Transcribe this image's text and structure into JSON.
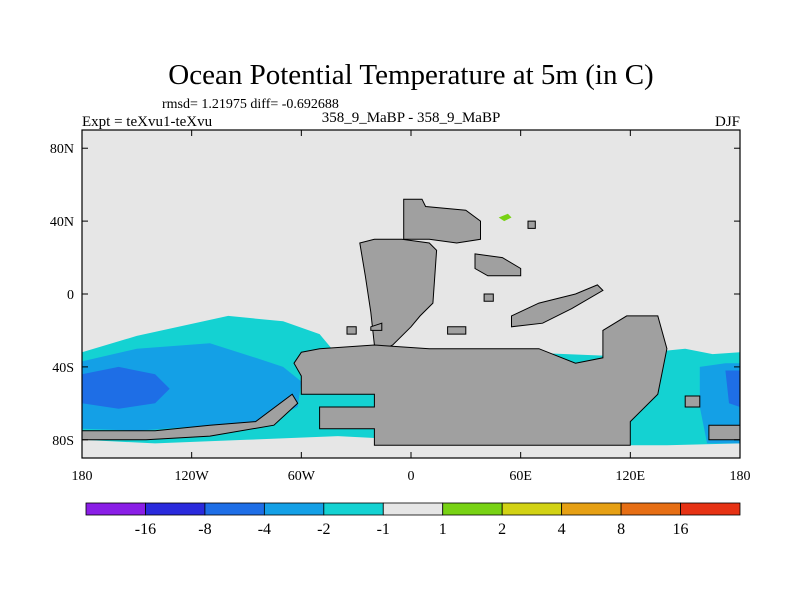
{
  "chart_data": {
    "type": "heatmap",
    "title": "Ocean Potential Temperature at 5m (in C)",
    "stats": "rmsd= 1.21975 diff= -0.692688",
    "experiment": "Expt = teXvu1-teXvu",
    "subtitle": "358_9_MaBP - 358_9_MaBP",
    "season": "DJF",
    "xlim": [
      -180,
      180
    ],
    "ylim": [
      -90,
      90
    ],
    "x_ticks": [
      {
        "value": -180,
        "label": "180"
      },
      {
        "value": -120,
        "label": "120W"
      },
      {
        "value": -60,
        "label": "60W"
      },
      {
        "value": 0,
        "label": "0"
      },
      {
        "value": 60,
        "label": "60E"
      },
      {
        "value": 120,
        "label": "120E"
      },
      {
        "value": 180,
        "label": "180"
      }
    ],
    "y_ticks": [
      {
        "value": 80,
        "label": "80N"
      },
      {
        "value": 40,
        "label": "40N"
      },
      {
        "value": 0,
        "label": "0"
      },
      {
        "value": -40,
        "label": "40S"
      },
      {
        "value": -80,
        "label": "80S"
      }
    ],
    "colorbar": {
      "colors": [
        "#8a1ee6",
        "#2a2adc",
        "#1e6ee6",
        "#14a0e6",
        "#14d2d2",
        "#e6e6e6",
        "#78d214",
        "#d2d214",
        "#e6a014",
        "#e66e14",
        "#e63214"
      ],
      "boundaries": [
        "-16",
        "-8",
        "-4",
        "-2",
        "-1",
        "1",
        "2",
        "4",
        "8",
        "16"
      ],
      "label_positions": [
        1,
        2,
        3,
        4,
        5,
        6,
        7,
        8,
        9,
        10
      ]
    },
    "background_color": "#e6e6e6",
    "land_color": "#a0a0a0",
    "anomaly_regions": [
      {
        "name": "southern-belt-light",
        "level": "-2 to -1",
        "color": "#14d2d2",
        "points": [
          [
            -180,
            -32
          ],
          [
            -150,
            -23
          ],
          [
            -100,
            -12
          ],
          [
            -70,
            -15
          ],
          [
            -50,
            -22
          ],
          [
            -40,
            -34
          ],
          [
            -20,
            -37
          ],
          [
            0,
            -37
          ],
          [
            20,
            -31
          ],
          [
            60,
            -32
          ],
          [
            110,
            -34
          ],
          [
            150,
            -30
          ],
          [
            165,
            -33
          ],
          [
            180,
            -32
          ],
          [
            180,
            -82
          ],
          [
            140,
            -83
          ],
          [
            70,
            -83
          ],
          [
            0,
            -80
          ],
          [
            -40,
            -78
          ],
          [
            -90,
            -80
          ],
          [
            -140,
            -82
          ],
          [
            -180,
            -80
          ]
        ]
      },
      {
        "name": "south-pacific-medium",
        "level": "-4 to -2",
        "color": "#14a0e6",
        "points": [
          [
            -180,
            -37
          ],
          [
            -150,
            -30
          ],
          [
            -110,
            -27
          ],
          [
            -85,
            -35
          ],
          [
            -70,
            -40
          ],
          [
            -60,
            -48
          ],
          [
            -62,
            -62
          ],
          [
            -80,
            -70
          ],
          [
            -110,
            -72
          ],
          [
            -150,
            -75
          ],
          [
            -180,
            -74
          ]
        ]
      },
      {
        "name": "south-pacific-strong",
        "level": "-8 to -4",
        "color": "#1e6ee6",
        "points": [
          [
            -180,
            -44
          ],
          [
            -160,
            -40
          ],
          [
            -140,
            -44
          ],
          [
            -132,
            -52
          ],
          [
            -140,
            -60
          ],
          [
            -160,
            -63
          ],
          [
            -180,
            -60
          ]
        ]
      },
      {
        "name": "east-medium",
        "level": "-4 to -2",
        "color": "#14a0e6",
        "points": [
          [
            158,
            -40
          ],
          [
            172,
            -38
          ],
          [
            180,
            -38
          ],
          [
            180,
            -82
          ],
          [
            162,
            -82
          ],
          [
            158,
            -62
          ]
        ]
      },
      {
        "name": "east-strong",
        "level": "-8 to -4",
        "color": "#1e6ee6",
        "points": [
          [
            172,
            -42
          ],
          [
            180,
            -42
          ],
          [
            180,
            -62
          ],
          [
            174,
            -60
          ]
        ]
      },
      {
        "name": "atlantic-medium",
        "level": "-4 to -2",
        "color": "#14a0e6",
        "points": [
          [
            -20,
            -40
          ],
          [
            -10,
            -38
          ],
          [
            0,
            -42
          ],
          [
            -8,
            -50
          ],
          [
            -20,
            -48
          ]
        ]
      },
      {
        "name": "north-green-spot",
        "level": "1 to 2",
        "color": "#78d214",
        "points": [
          [
            48,
            42
          ],
          [
            53,
            44
          ],
          [
            55,
            42
          ],
          [
            51,
            40
          ]
        ]
      }
    ],
    "land_regions": [
      {
        "name": "europe-africa",
        "points": [
          [
            -28,
            28
          ],
          [
            -20,
            30
          ],
          [
            -5,
            30
          ],
          [
            10,
            28
          ],
          [
            14,
            24
          ],
          [
            12,
            -5
          ],
          [
            5,
            -12
          ],
          [
            0,
            -18
          ],
          [
            -10,
            -28
          ],
          [
            -18,
            -32
          ],
          [
            -20,
            -28
          ],
          [
            -22,
            -10
          ],
          [
            -25,
            10
          ]
        ]
      },
      {
        "name": "north-landmass",
        "points": [
          [
            -4,
            52
          ],
          [
            6,
            52
          ],
          [
            8,
            48
          ],
          [
            30,
            46
          ],
          [
            38,
            40
          ],
          [
            38,
            30
          ],
          [
            25,
            28
          ],
          [
            10,
            30
          ],
          [
            -4,
            30
          ]
        ]
      },
      {
        "name": "central-island",
        "points": [
          [
            35,
            22
          ],
          [
            50,
            20
          ],
          [
            60,
            14
          ],
          [
            60,
            10
          ],
          [
            42,
            10
          ],
          [
            35,
            14
          ]
        ]
      },
      {
        "name": "east-arc",
        "points": [
          [
            55,
            -12
          ],
          [
            70,
            -5
          ],
          [
            90,
            0
          ],
          [
            102,
            5
          ],
          [
            105,
            2
          ],
          [
            88,
            -8
          ],
          [
            72,
            -16
          ],
          [
            55,
            -18
          ]
        ]
      },
      {
        "name": "southern-continent",
        "points": [
          [
            -60,
            -32
          ],
          [
            -50,
            -30
          ],
          [
            -20,
            -28
          ],
          [
            10,
            -30
          ],
          [
            40,
            -30
          ],
          [
            70,
            -30
          ],
          [
            90,
            -38
          ],
          [
            105,
            -35
          ],
          [
            105,
            -20
          ],
          [
            118,
            -12
          ],
          [
            135,
            -12
          ],
          [
            140,
            -30
          ],
          [
            135,
            -55
          ],
          [
            120,
            -70
          ],
          [
            120,
            -83
          ],
          [
            40,
            -83
          ],
          [
            -20,
            -83
          ],
          [
            -20,
            -74
          ],
          [
            -50,
            -74
          ],
          [
            -50,
            -62
          ],
          [
            -20,
            -62
          ],
          [
            -20,
            -55
          ],
          [
            -60,
            -55
          ],
          [
            -60,
            -45
          ],
          [
            -64,
            -38
          ]
        ]
      },
      {
        "name": "southwest-peninsula",
        "points": [
          [
            -180,
            -75
          ],
          [
            -140,
            -75
          ],
          [
            -110,
            -72
          ],
          [
            -85,
            -70
          ],
          [
            -65,
            -55
          ],
          [
            -62,
            -60
          ],
          [
            -75,
            -72
          ],
          [
            -110,
            -78
          ],
          [
            -145,
            -80
          ],
          [
            -180,
            -80
          ]
        ]
      },
      {
        "name": "far-east-strip",
        "points": [
          [
            163,
            -72
          ],
          [
            180,
            -72
          ],
          [
            180,
            -80
          ],
          [
            163,
            -80
          ]
        ]
      },
      {
        "name": "small-island-a",
        "points": [
          [
            -22,
            -18
          ],
          [
            -16,
            -16
          ],
          [
            -16,
            -20
          ],
          [
            -22,
            -20
          ]
        ]
      },
      {
        "name": "small-island-b",
        "points": [
          [
            -35,
            -18
          ],
          [
            -30,
            -18
          ],
          [
            -30,
            -22
          ],
          [
            -35,
            -22
          ]
        ]
      },
      {
        "name": "small-island-c",
        "points": [
          [
            20,
            -18
          ],
          [
            30,
            -18
          ],
          [
            30,
            -22
          ],
          [
            20,
            -22
          ]
        ]
      },
      {
        "name": "small-island-d",
        "points": [
          [
            40,
            0
          ],
          [
            45,
            0
          ],
          [
            45,
            -4
          ],
          [
            40,
            -4
          ]
        ]
      },
      {
        "name": "small-island-e",
        "points": [
          [
            150,
            -56
          ],
          [
            158,
            -56
          ],
          [
            158,
            -62
          ],
          [
            150,
            -62
          ]
        ]
      },
      {
        "name": "small-island-f",
        "points": [
          [
            64,
            40
          ],
          [
            68,
            40
          ],
          [
            68,
            36
          ],
          [
            64,
            36
          ]
        ]
      }
    ]
  }
}
